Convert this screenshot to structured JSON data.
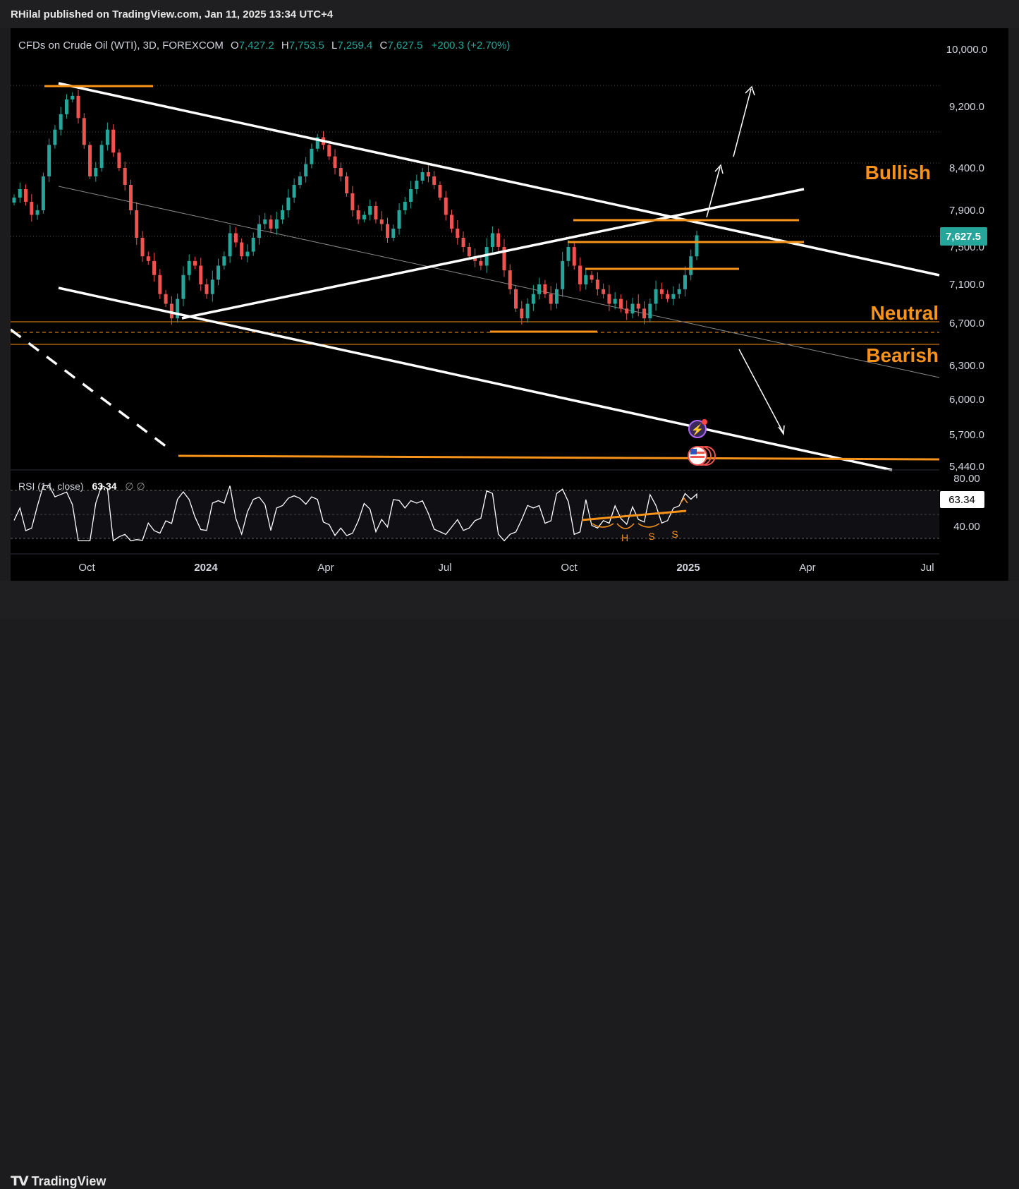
{
  "header": {
    "publisher": "RHilal published on TradingView.com, Jan 11, 2025 13:34 UTC+4"
  },
  "legend": {
    "symbol": "CFDs on Crude Oil (WTI), 3D, FOREXCOM",
    "o_label": "O",
    "o_value": "7,427.2",
    "h_label": "H",
    "h_value": "7,753.5",
    "l_label": "L",
    "l_value": "7,259.4",
    "c_label": "C",
    "c_value": "7,627.5",
    "change": "+200.3 (+2.70%)"
  },
  "labels": {
    "bullish": "Bullish",
    "neutral": "Neutral",
    "bearish": "Bearish"
  },
  "rsi": {
    "title": "RSI (14, close)",
    "value": "63.34",
    "extra": "∅  ∅",
    "axis_ticks": [
      "80.00",
      "40.00"
    ],
    "badge": "63.34",
    "pattern_labels": [
      "H",
      "S",
      "S"
    ]
  },
  "price_badge": "7,627.5",
  "footer": {
    "brand": "TradingView"
  },
  "colors": {
    "up": "#26a69a",
    "down": "#ef5350",
    "orange": "#f7931a",
    "background": "#000000"
  },
  "chart_data": {
    "type": "candlestick",
    "title": "CFDs on Crude Oil (WTI), 3D, FOREXCOM",
    "y_axis_ticks": [
      "10,000.0",
      "9,200.0",
      "8,400.0",
      "7,900.0",
      "7,500.0",
      "7,100.0",
      "6,700.0",
      "6,300.0",
      "6,000.0",
      "5,700.0",
      "5,440.0"
    ],
    "x_axis_ticks": [
      "Oct",
      "2024",
      "Apr",
      "Jul",
      "Oct",
      "2025",
      "Apr",
      "Jul"
    ],
    "last_close": 7627.5,
    "ohlc_last": {
      "open": 7427.2,
      "high": 7753.5,
      "low": 7259.4,
      "close": 7627.5
    },
    "zone_labels": [
      "Bullish",
      "Neutral",
      "Bearish"
    ],
    "rsi": {
      "period": 14,
      "value": 63.34,
      "levels": [
        80,
        40
      ]
    },
    "closes_approx": [
      8050,
      8150,
      8000,
      7850,
      7900,
      8300,
      8700,
      8900,
      9100,
      9300,
      9350,
      9050,
      8700,
      8300,
      8400,
      8700,
      8900,
      8600,
      8400,
      8200,
      7900,
      7600,
      7400,
      7350,
      7200,
      7000,
      6900,
      6750,
      6950,
      7200,
      7350,
      7300,
      7100,
      7000,
      7150,
      7300,
      7400,
      7650,
      7550,
      7400,
      7450,
      7600,
      7750,
      7800,
      7700,
      7800,
      7900,
      8050,
      8200,
      8300,
      8450,
      8650,
      8800,
      8700,
      8550,
      8400,
      8300,
      8100,
      7900,
      7800,
      7850,
      7950,
      7800,
      7750,
      7600,
      7700,
      7900,
      8000,
      8150,
      8250,
      8350,
      8300,
      8200,
      8050,
      7850,
      7700,
      7600,
      7500,
      7400,
      7350,
      7300,
      7500,
      7650,
      7500,
      7250,
      7050,
      6850,
      6750,
      6900,
      7000,
      7100,
      7000,
      6900,
      7050,
      7350,
      7500,
      7300,
      7100,
      7200,
      7150,
      7050,
      7000,
      6900,
      6950,
      6850,
      6800,
      6900,
      6850,
      6750,
      6900,
      7050,
      7000,
      6950,
      7000,
      7050,
      7200,
      7400,
      7627.5
    ]
  }
}
